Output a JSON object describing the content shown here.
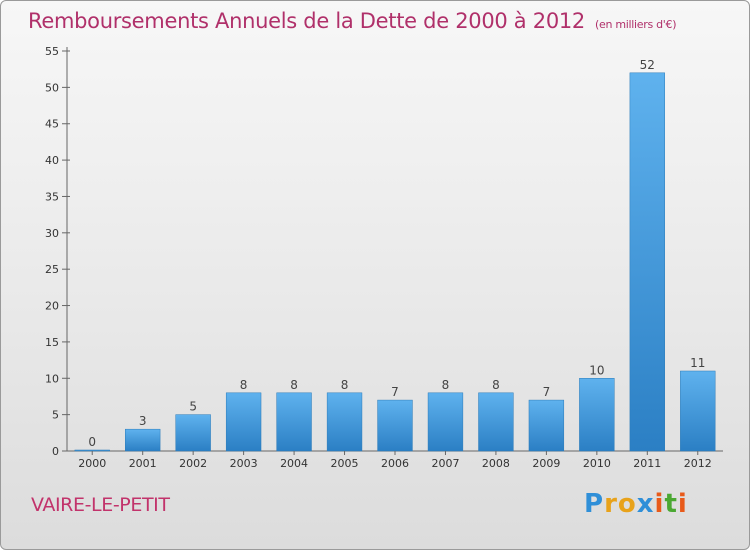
{
  "chart_data": {
    "type": "bar",
    "title": "Remboursements Annuels de la Dette de 2000 à 2012",
    "unit_note": "(en milliers d'€)",
    "categories": [
      "2000",
      "2001",
      "2002",
      "2003",
      "2004",
      "2005",
      "2006",
      "2007",
      "2008",
      "2009",
      "2010",
      "2011",
      "2012"
    ],
    "values": [
      0,
      3,
      5,
      8,
      8,
      8,
      7,
      8,
      8,
      7,
      10,
      52,
      11
    ],
    "ylim": [
      0,
      55
    ],
    "yticks": [
      0,
      5,
      10,
      15,
      20,
      25,
      30,
      35,
      40,
      45,
      50,
      55
    ],
    "grid": false,
    "bar_color": "#3d95d9"
  },
  "commune": "VAIRE-LE-PETIT",
  "logo": {
    "text": "Proxiti",
    "letters": [
      "P",
      "r",
      "o",
      "x",
      "i",
      "t",
      "i"
    ],
    "colors": [
      "#2f8fd8",
      "#e8a21a",
      "#e8a21a",
      "#2f8fd8",
      "#e85a1a",
      "#4aa832",
      "#e85a1a"
    ]
  }
}
